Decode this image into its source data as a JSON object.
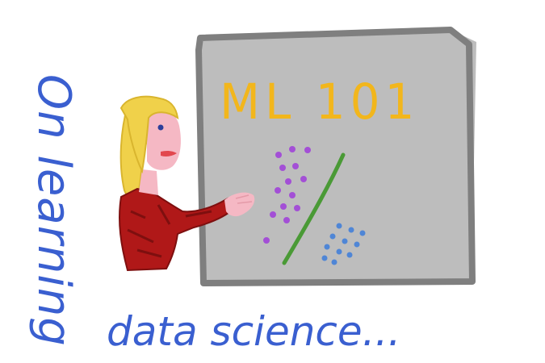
{
  "side_caption": "On learning",
  "bottom_caption": "data science...",
  "board_title": "ML 101",
  "colors": {
    "blue_ink": "#3a5fd0",
    "board_fill": "#bdbdbd",
    "board_frame": "#7f7f7f",
    "title_yellow": "#f2b61c",
    "purple_dots": "#a34fd6",
    "blue_dots": "#4f86d6",
    "green_line": "#4a9a36",
    "hair": "#f0d14a",
    "skin": "#f5b8c4",
    "sweater": "#b01818"
  },
  "icons": [
    "person-teacher",
    "whiteboard",
    "scatter-dots"
  ]
}
